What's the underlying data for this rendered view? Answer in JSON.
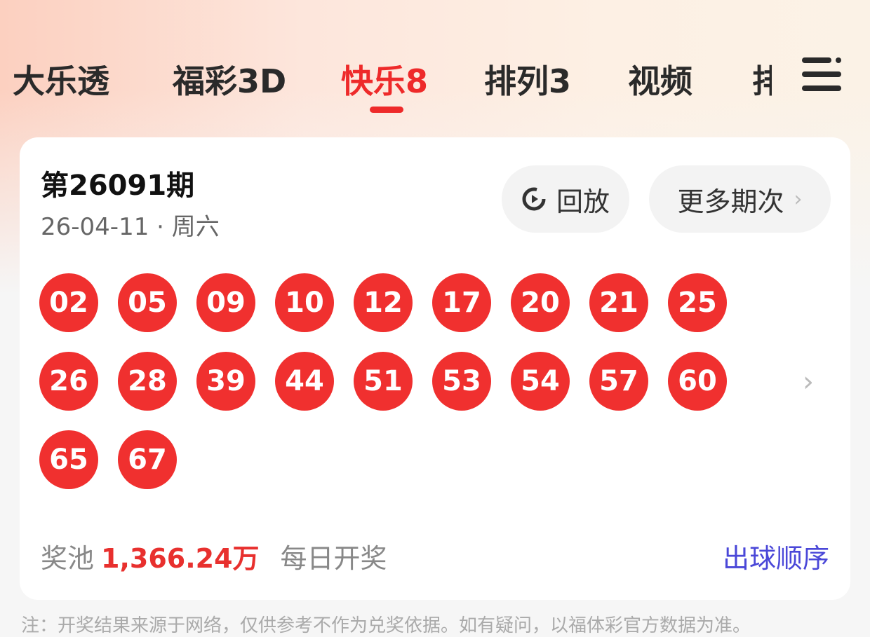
{
  "tabs": [
    {
      "label": "大乐透"
    },
    {
      "label": "福彩3D"
    },
    {
      "label": "快乐8",
      "active": true
    },
    {
      "label": "排列3"
    },
    {
      "label": "视频"
    },
    {
      "label": "排"
    }
  ],
  "card": {
    "issue": "第26091期",
    "date": "26-04-11 · 周六",
    "replay_label": "回放",
    "more_label": "更多期次",
    "balls": [
      "02",
      "05",
      "09",
      "10",
      "12",
      "17",
      "20",
      "21",
      "25",
      "26",
      "28",
      "39",
      "44",
      "51",
      "53",
      "54",
      "57",
      "60",
      "65",
      "67"
    ],
    "pool_label": "奖池",
    "pool_amount": "1,366.24万",
    "schedule": "每日开奖",
    "order_link": "出球顺序"
  },
  "note": "注：开奖结果来源于网络，仅供参考不作为兑奖依据。如有疑问，以福体彩官方数据为准。",
  "colors": {
    "accent": "#ee2a2a",
    "ball": "#f0302f",
    "link": "#4a47d8"
  }
}
